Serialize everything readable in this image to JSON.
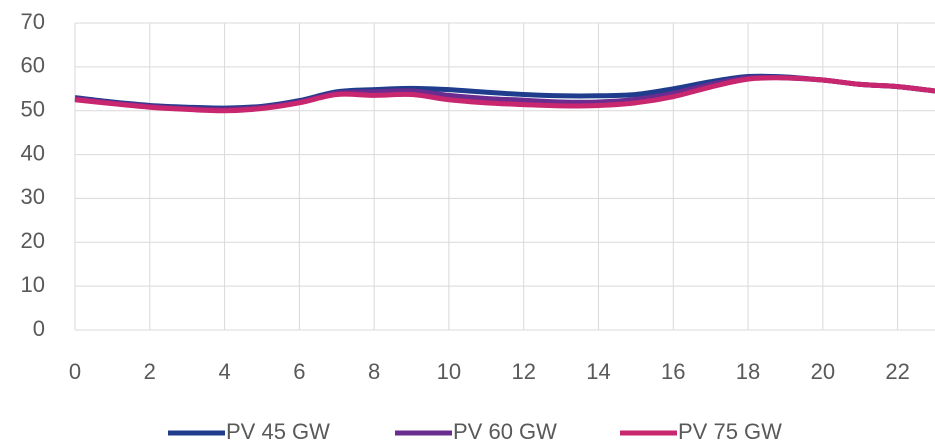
{
  "chart_data": {
    "type": "line",
    "x": [
      0,
      1,
      2,
      3,
      4,
      5,
      6,
      7,
      8,
      9,
      10,
      11,
      12,
      13,
      14,
      15,
      16,
      17,
      18,
      19,
      20,
      21,
      22,
      23
    ],
    "series": [
      {
        "name": "PV 45 GW",
        "color": "#1f3d8c",
        "values": [
          53,
          52,
          51.2,
          50.8,
          50.6,
          51,
          52.3,
          54.3,
          54.8,
          55.1,
          54.8,
          54.2,
          53.7,
          53.4,
          53.4,
          53.7,
          55,
          56.6,
          57.8,
          57.7,
          57,
          56,
          55.5,
          54.5
        ]
      },
      {
        "name": "PV 60 GW",
        "color": "#6a2c8f",
        "values": [
          52.8,
          51.8,
          51,
          50.5,
          50.3,
          50.8,
          52,
          54,
          54.3,
          54.5,
          53.5,
          52.8,
          52.4,
          52,
          52,
          52.6,
          54,
          56,
          57.5,
          57.5,
          57,
          56,
          55.5,
          54.5
        ]
      },
      {
        "name": "PV 75 GW",
        "color": "#c8266e",
        "values": [
          52.5,
          51.6,
          50.8,
          50.3,
          50,
          50.5,
          51.8,
          53.7,
          53.5,
          53.7,
          52.5,
          51.8,
          51.4,
          51.1,
          51.2,
          51.8,
          53.2,
          55.4,
          57.2,
          57.5,
          57,
          56,
          55.5,
          54.5
        ]
      }
    ],
    "xlim": [
      0,
      23
    ],
    "xticks": [
      0,
      2,
      4,
      6,
      8,
      10,
      12,
      14,
      16,
      18,
      20,
      22
    ],
    "ylim": [
      0,
      70
    ],
    "yticks": [
      0,
      10,
      20,
      30,
      40,
      50,
      60,
      70
    ],
    "grid": true,
    "legend": "bottom"
  }
}
